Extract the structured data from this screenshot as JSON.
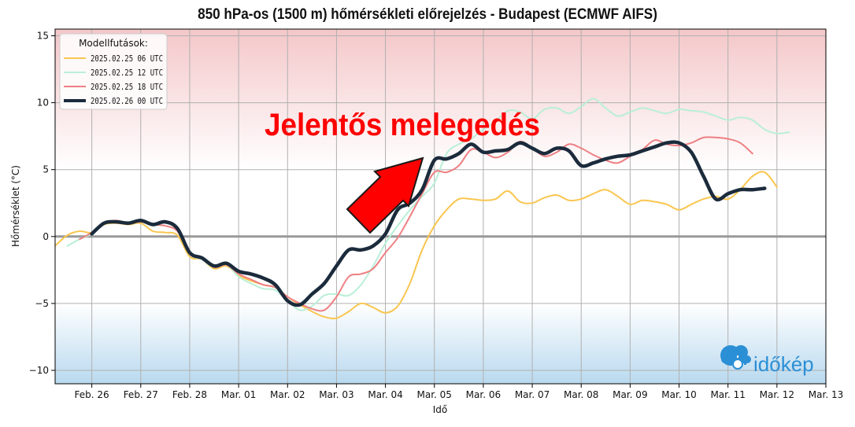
{
  "chart_data": {
    "type": "line",
    "title": "850 hPa-os (1500 m) hőmérsékleti előrejelzés - Budapest (ECMWF AIFS)",
    "xlabel": "Idő",
    "ylabel": "Hőmérséklet (°C)",
    "xlim": [
      -0.75,
      15.0
    ],
    "ylim": [
      -11,
      15.5
    ],
    "x_ticks": [
      0,
      1,
      2,
      3,
      4,
      5,
      6,
      7,
      8,
      9,
      10,
      11,
      12,
      13,
      14,
      15
    ],
    "x_tick_labels": [
      "Feb. 26",
      "Feb. 27",
      "Feb. 28",
      "Mar. 01",
      "Mar. 02",
      "Mar. 03",
      "Mar. 04",
      "Mar. 05",
      "Mar. 06",
      "Mar. 07",
      "Mar. 08",
      "Mar. 09",
      "Mar. 10",
      "Mar. 11",
      "Mar. 12",
      "Mar. 13"
    ],
    "y_ticks": [
      -10,
      -5,
      0,
      5,
      10,
      15
    ],
    "y_tick_labels": [
      "−10",
      "−5",
      "0",
      "5",
      "10",
      "15"
    ],
    "grid": true,
    "legend": {
      "title": "Modellfutások:",
      "position": "top-left"
    },
    "background_bands": {
      "warm_color": "#f4c7c9",
      "cold_color": "#b9d9ef"
    },
    "zero_line_color": "#999999",
    "annotation": {
      "text": "Jelentős melegedés",
      "color": "#ff0000"
    },
    "series": [
      {
        "name": "2025.02.25 06 UTC",
        "color": "#f9c64f",
        "width": 2,
        "x": [
          -0.75,
          -0.5,
          -0.25,
          0,
          0.25,
          0.5,
          0.75,
          1,
          1.25,
          1.5,
          1.75,
          2,
          2.25,
          2.5,
          2.75,
          3,
          3.25,
          3.5,
          3.75,
          4,
          4.25,
          4.5,
          4.75,
          5,
          5.25,
          5.5,
          5.75,
          6,
          6.25,
          6.5,
          6.75,
          7,
          7.25,
          7.5,
          7.75,
          8,
          8.25,
          8.5,
          8.75,
          9,
          9.25,
          9.5,
          9.75,
          10,
          10.25,
          10.5,
          10.75,
          11,
          11.25,
          11.5,
          11.75,
          12,
          12.25,
          12.5,
          12.75,
          13,
          13.25,
          13.5,
          13.75,
          14,
          14.25
        ],
        "y": [
          -0.7,
          0.1,
          0.4,
          0.3,
          0.9,
          1.0,
          0.9,
          1.0,
          0.4,
          0.3,
          0.1,
          -1.5,
          -1.7,
          -2.4,
          -2.2,
          -2.9,
          -3.3,
          -3.6,
          -3.8,
          -4.5,
          -5.1,
          -5.6,
          -6.0,
          -6.1,
          -5.6,
          -5.0,
          -5.3,
          -5.7,
          -5.2,
          -3.5,
          -1.0,
          0.8,
          2.0,
          2.8,
          2.8,
          2.7,
          2.8,
          3.4,
          2.6,
          2.5,
          2.9,
          3.1,
          2.7,
          2.8,
          3.2,
          3.5,
          3.0,
          2.4,
          2.7,
          2.6,
          2.4,
          2.0,
          2.4,
          2.8,
          3.0,
          2.8,
          3.5,
          4.5,
          4.8,
          3.7,
          null
        ]
      },
      {
        "name": "2025.02.25 12 UTC",
        "color": "#b9efd7",
        "width": 2,
        "x": [
          -0.5,
          -0.25,
          0,
          0.25,
          0.5,
          0.75,
          1,
          1.25,
          1.5,
          1.75,
          2,
          2.25,
          2.5,
          2.75,
          3,
          3.25,
          3.5,
          3.75,
          4,
          4.25,
          4.5,
          4.75,
          5,
          5.25,
          5.5,
          5.75,
          6,
          6.25,
          6.5,
          6.75,
          7,
          7.25,
          7.5,
          7.75,
          8,
          8.25,
          8.5,
          8.75,
          9,
          9.25,
          9.5,
          9.75,
          10,
          10.25,
          10.5,
          10.75,
          11,
          11.25,
          11.5,
          11.75,
          12,
          12.25,
          12.5,
          12.75,
          13,
          13.25,
          13.5,
          13.75,
          14,
          14.25,
          14.5
        ],
        "y": [
          -0.7,
          -0.2,
          0.2,
          1.0,
          1.1,
          1.1,
          1.2,
          0.8,
          1.0,
          0.5,
          -1.3,
          -1.7,
          -2.3,
          -2.1,
          -3.0,
          -3.5,
          -3.9,
          -4.0,
          -4.8,
          -5.5,
          -5.2,
          -4.4,
          -4.3,
          -4.4,
          -3.6,
          -2.2,
          -0.5,
          0.8,
          2.0,
          3.0,
          4.0,
          6.2,
          6.9,
          7.3,
          8.0,
          8.6,
          9.4,
          9.3,
          8.8,
          9.5,
          9.6,
          9.2,
          9.7,
          10.3,
          9.6,
          9.0,
          9.3,
          9.6,
          9.4,
          9.2,
          9.5,
          9.4,
          9.3,
          9.0,
          8.7,
          8.9,
          8.7,
          8.0,
          7.7,
          7.8,
          null
        ]
      },
      {
        "name": "2025.02.25 18 UTC",
        "color": "#ee7f82",
        "width": 2,
        "x": [
          -0.25,
          0,
          0.25,
          0.5,
          0.75,
          1,
          1.25,
          1.5,
          1.75,
          2,
          2.25,
          2.5,
          2.75,
          3,
          3.25,
          3.5,
          3.75,
          4,
          4.25,
          4.5,
          4.75,
          5,
          5.25,
          5.5,
          5.75,
          6,
          6.25,
          6.5,
          6.75,
          7,
          7.25,
          7.5,
          7.75,
          8,
          8.25,
          8.5,
          8.75,
          9,
          9.25,
          9.5,
          9.75,
          10,
          10.25,
          10.5,
          10.75,
          11,
          11.25,
          11.5,
          11.75,
          12,
          12.25,
          12.5,
          12.75,
          13,
          13.25,
          13.5,
          13.75,
          14,
          14.25,
          14.5,
          14.75
        ],
        "y": [
          -0.2,
          0.3,
          1.0,
          1.2,
          1.0,
          1.1,
          0.9,
          0.8,
          0.4,
          -1.2,
          -1.6,
          -2.3,
          -2.1,
          -2.8,
          -3.2,
          -3.6,
          -3.8,
          -4.5,
          -5.0,
          -5.4,
          -5.5,
          -4.5,
          -3.0,
          -2.8,
          -2.4,
          -1.2,
          -0.1,
          1.5,
          3.2,
          4.8,
          4.8,
          5.3,
          6.5,
          6.3,
          5.9,
          6.3,
          7.1,
          6.6,
          6.0,
          6.3,
          6.9,
          6.6,
          6.1,
          5.7,
          5.5,
          6.0,
          6.5,
          7.2,
          6.9,
          6.8,
          7.0,
          7.4,
          7.4,
          7.3,
          7.0,
          6.2,
          null,
          null,
          null,
          null,
          null
        ]
      },
      {
        "name": "2025.02.26 00 UTC",
        "color": "#1b2b3c",
        "width": 4.5,
        "x": [
          0,
          0.25,
          0.5,
          0.75,
          1,
          1.25,
          1.5,
          1.75,
          2,
          2.25,
          2.5,
          2.75,
          3,
          3.25,
          3.5,
          3.75,
          4,
          4.25,
          4.5,
          4.75,
          5,
          5.25,
          5.5,
          5.75,
          6,
          6.25,
          6.5,
          6.75,
          7,
          7.25,
          7.5,
          7.75,
          8,
          8.25,
          8.5,
          8.75,
          9,
          9.25,
          9.5,
          9.75,
          10,
          10.25,
          10.5,
          10.75,
          11,
          11.25,
          11.5,
          11.75,
          12,
          12.25,
          12.5,
          12.75,
          13,
          13.25,
          13.5,
          13.75,
          14,
          14.25,
          14.5,
          14.75,
          15.0
        ],
        "y": [
          0.2,
          1.0,
          1.1,
          1.0,
          1.2,
          0.9,
          1.1,
          0.6,
          -1.2,
          -1.6,
          -2.2,
          -2.0,
          -2.6,
          -2.8,
          -3.1,
          -3.6,
          -4.8,
          -5.1,
          -4.3,
          -3.5,
          -2.2,
          -1.0,
          -1.0,
          -0.7,
          0.2,
          2.0,
          2.5,
          3.5,
          5.7,
          5.8,
          6.2,
          6.9,
          6.3,
          6.4,
          6.5,
          7.0,
          6.6,
          6.2,
          6.6,
          6.4,
          5.3,
          5.5,
          5.8,
          6.0,
          6.1,
          6.4,
          6.7,
          7.0,
          7.0,
          6.3,
          4.5,
          2.8,
          3.2,
          3.5,
          3.5,
          3.6,
          null,
          null,
          null,
          null,
          null
        ]
      }
    ]
  },
  "brand": {
    "name": "időkép"
  }
}
